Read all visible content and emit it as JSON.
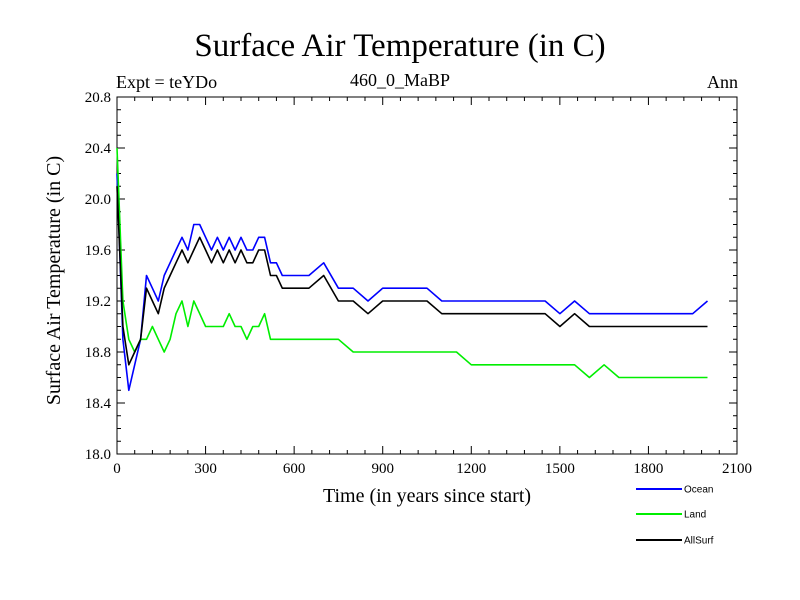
{
  "header": {
    "title": "Surface Air Temperature (in C)",
    "experiment": "Expt = teYDo",
    "period": "460_0_MaBP",
    "season": "Ann"
  },
  "chart_data": {
    "type": "line",
    "title": "Surface Air Temperature (in C)",
    "xlabel": "Time (in years since start)",
    "ylabel": "Surface Air Temperature (in C)",
    "xlim": [
      0,
      2100
    ],
    "ylim": [
      18.0,
      20.8
    ],
    "xticks": [
      0,
      300,
      600,
      900,
      1200,
      1500,
      1800,
      2100
    ],
    "yticks": [
      18.0,
      18.4,
      18.8,
      19.2,
      19.6,
      20.0,
      20.4,
      20.8
    ],
    "xtick_labels": [
      "0",
      "300",
      "600",
      "900",
      "1200",
      "1500",
      "1800",
      "2100"
    ],
    "ytick_labels": [
      "18.0",
      "18.4",
      "18.8",
      "19.2",
      "19.6",
      "20.0",
      "20.4",
      "20.8"
    ],
    "legend_position": "bottom-right outside",
    "series": [
      {
        "name": "Ocean",
        "color": "#0000ff",
        "x": [
          0,
          20,
          40,
          60,
          80,
          100,
          120,
          140,
          160,
          180,
          200,
          220,
          240,
          260,
          280,
          300,
          320,
          340,
          360,
          380,
          400,
          420,
          440,
          460,
          480,
          500,
          520,
          540,
          560,
          580,
          600,
          650,
          700,
          750,
          800,
          850,
          900,
          950,
          1000,
          1050,
          1100,
          1150,
          1200,
          1250,
          1300,
          1350,
          1400,
          1450,
          1500,
          1550,
          1600,
          1650,
          1700,
          1750,
          1800,
          1850,
          1900,
          1950,
          2000
        ],
        "values": [
          20.2,
          18.9,
          18.5,
          18.7,
          18.9,
          19.4,
          19.3,
          19.2,
          19.4,
          19.5,
          19.6,
          19.7,
          19.6,
          19.8,
          19.8,
          19.7,
          19.6,
          19.7,
          19.6,
          19.7,
          19.6,
          19.7,
          19.6,
          19.6,
          19.7,
          19.7,
          19.5,
          19.5,
          19.4,
          19.4,
          19.4,
          19.4,
          19.5,
          19.3,
          19.3,
          19.2,
          19.3,
          19.3,
          19.3,
          19.3,
          19.2,
          19.2,
          19.2,
          19.2,
          19.2,
          19.2,
          19.2,
          19.2,
          19.1,
          19.2,
          19.1,
          19.1,
          19.1,
          19.1,
          19.1,
          19.1,
          19.1,
          19.1,
          19.2
        ]
      },
      {
        "name": "Land",
        "color": "#00ee00",
        "x": [
          0,
          20,
          40,
          60,
          80,
          100,
          120,
          140,
          160,
          180,
          200,
          220,
          240,
          260,
          280,
          300,
          320,
          340,
          360,
          380,
          400,
          420,
          440,
          460,
          480,
          500,
          520,
          540,
          560,
          580,
          600,
          650,
          700,
          750,
          800,
          850,
          900,
          950,
          1000,
          1050,
          1100,
          1150,
          1200,
          1250,
          1300,
          1350,
          1400,
          1450,
          1500,
          1550,
          1600,
          1650,
          1700,
          1750,
          1800,
          1850,
          1900,
          1950,
          2000
        ],
        "values": [
          20.4,
          19.2,
          18.9,
          18.8,
          18.9,
          18.9,
          19.0,
          18.9,
          18.8,
          18.9,
          19.1,
          19.2,
          19.0,
          19.2,
          19.1,
          19.0,
          19.0,
          19.0,
          19.0,
          19.1,
          19.0,
          19.0,
          18.9,
          19.0,
          19.0,
          19.1,
          18.9,
          18.9,
          18.9,
          18.9,
          18.9,
          18.9,
          18.9,
          18.9,
          18.8,
          18.8,
          18.8,
          18.8,
          18.8,
          18.8,
          18.8,
          18.8,
          18.7,
          18.7,
          18.7,
          18.7,
          18.7,
          18.7,
          18.7,
          18.7,
          18.6,
          18.7,
          18.6,
          18.6,
          18.6,
          18.6,
          18.6,
          18.6,
          18.6
        ]
      },
      {
        "name": "AllSurf",
        "color": "#000000",
        "x": [
          0,
          20,
          40,
          60,
          80,
          100,
          120,
          140,
          160,
          180,
          200,
          220,
          240,
          260,
          280,
          300,
          320,
          340,
          360,
          380,
          400,
          420,
          440,
          460,
          480,
          500,
          520,
          540,
          560,
          580,
          600,
          650,
          700,
          750,
          800,
          850,
          900,
          950,
          1000,
          1050,
          1100,
          1150,
          1200,
          1250,
          1300,
          1350,
          1400,
          1450,
          1500,
          1550,
          1600,
          1650,
          1700,
          1750,
          1800,
          1850,
          1900,
          1950,
          2000
        ],
        "values": [
          20.1,
          19.0,
          18.7,
          18.8,
          18.9,
          19.3,
          19.2,
          19.1,
          19.3,
          19.4,
          19.5,
          19.6,
          19.5,
          19.6,
          19.7,
          19.6,
          19.5,
          19.6,
          19.5,
          19.6,
          19.5,
          19.6,
          19.5,
          19.5,
          19.6,
          19.6,
          19.4,
          19.4,
          19.3,
          19.3,
          19.3,
          19.3,
          19.4,
          19.2,
          19.2,
          19.1,
          19.2,
          19.2,
          19.2,
          19.2,
          19.1,
          19.1,
          19.1,
          19.1,
          19.1,
          19.1,
          19.1,
          19.1,
          19.0,
          19.1,
          19.0,
          19.0,
          19.0,
          19.0,
          19.0,
          19.0,
          19.0,
          19.0,
          19.0
        ]
      }
    ]
  }
}
